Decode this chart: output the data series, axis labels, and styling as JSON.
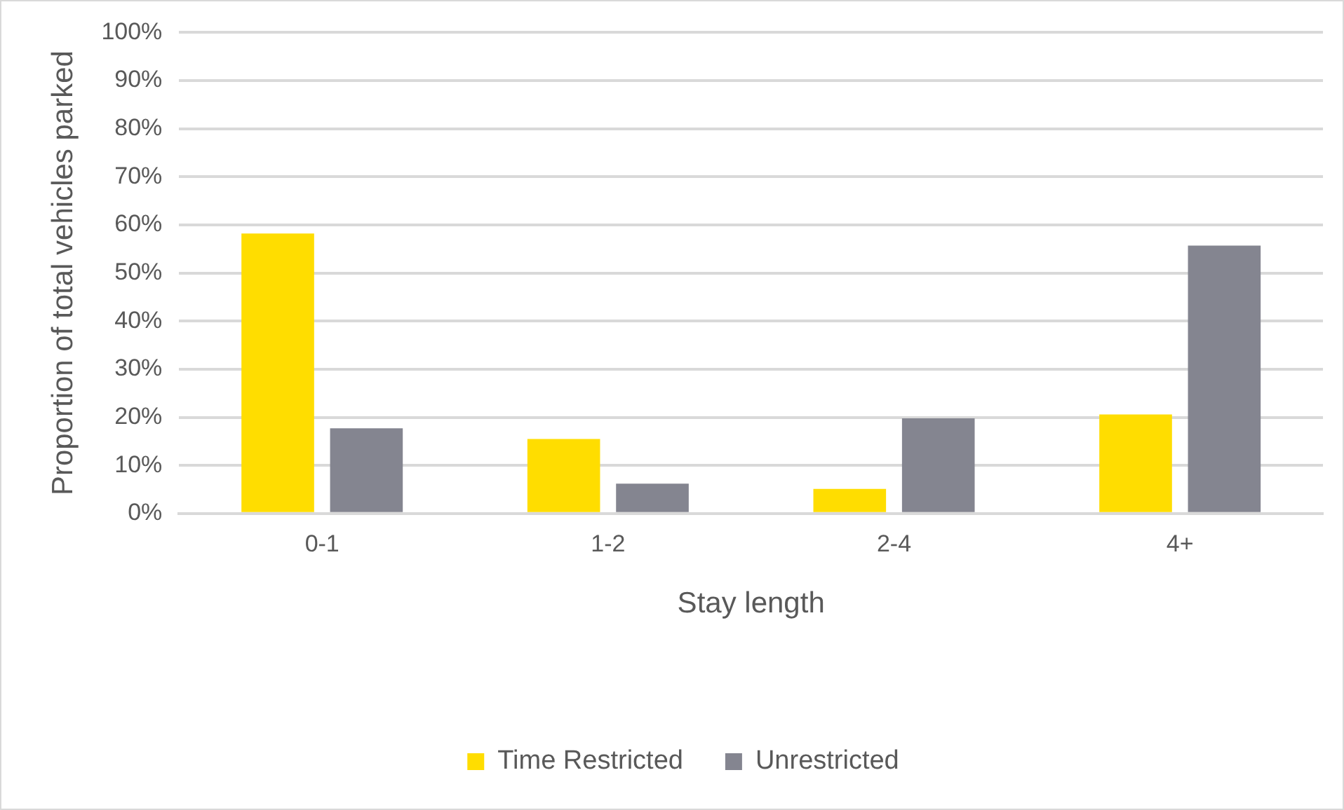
{
  "chart_data": {
    "type": "bar",
    "xlabel": "Stay length",
    "ylabel": "Proportion of total vehicles parked",
    "categories": [
      "0-1",
      "1-2",
      "2-4",
      "4+"
    ],
    "series": [
      {
        "name": "Time Restricted",
        "color": "#ffdd00",
        "values": [
          58.2,
          15.5,
          5.1,
          20.6
        ]
      },
      {
        "name": "Unrestricted",
        "color": "#848590",
        "values": [
          17.7,
          6.2,
          19.8,
          55.7
        ]
      }
    ],
    "ylim": [
      0,
      100
    ],
    "yticks": [
      {
        "value": 0,
        "label": "0%"
      },
      {
        "value": 10,
        "label": "10%"
      },
      {
        "value": 20,
        "label": "20%"
      },
      {
        "value": 30,
        "label": "30%"
      },
      {
        "value": 40,
        "label": "40%"
      },
      {
        "value": 50,
        "label": "50%"
      },
      {
        "value": 60,
        "label": "60%"
      },
      {
        "value": 70,
        "label": "70%"
      },
      {
        "value": 80,
        "label": "80%"
      },
      {
        "value": 90,
        "label": "90%"
      },
      {
        "value": 100,
        "label": "100%"
      }
    ],
    "grid": "y",
    "legend": "bottom"
  }
}
